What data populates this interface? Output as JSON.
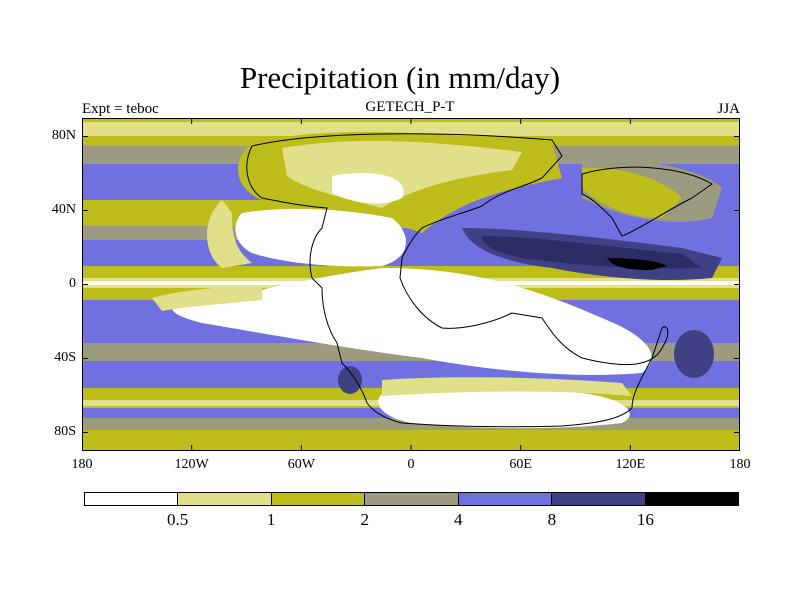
{
  "title": "Precipitation (in mm/day)",
  "experiment_label": "Expt = teboc",
  "dataset_label": "GETECH_P-T",
  "season_label": "JJA",
  "lat_ticks": [
    {
      "label": "80N",
      "value": 80
    },
    {
      "label": "40N",
      "value": 40
    },
    {
      "label": "0",
      "value": 0
    },
    {
      "label": "40S",
      "value": -40
    },
    {
      "label": "80S",
      "value": -80
    }
  ],
  "lon_ticks": [
    {
      "label": "180",
      "value": -180
    },
    {
      "label": "120W",
      "value": -120
    },
    {
      "label": "60W",
      "value": -60
    },
    {
      "label": "0",
      "value": 0
    },
    {
      "label": "60E",
      "value": 60
    },
    {
      "label": "120E",
      "value": 120
    },
    {
      "label": "180",
      "value": 180
    }
  ],
  "colorbar": {
    "levels": [
      "0.5",
      "1",
      "2",
      "4",
      "8",
      "16"
    ],
    "colors": [
      "#ffffff",
      "#e0e08a",
      "#bdbd1c",
      "#9b9b80",
      "#7070e0",
      "#404085",
      "#000000"
    ]
  },
  "palette": {
    "white": "#ffffff",
    "pale": "#e0e08a",
    "olive": "#bdbd1c",
    "gray": "#9b9b80",
    "blue": "#7070e0",
    "navy": "#404085",
    "black": "#000000"
  }
}
